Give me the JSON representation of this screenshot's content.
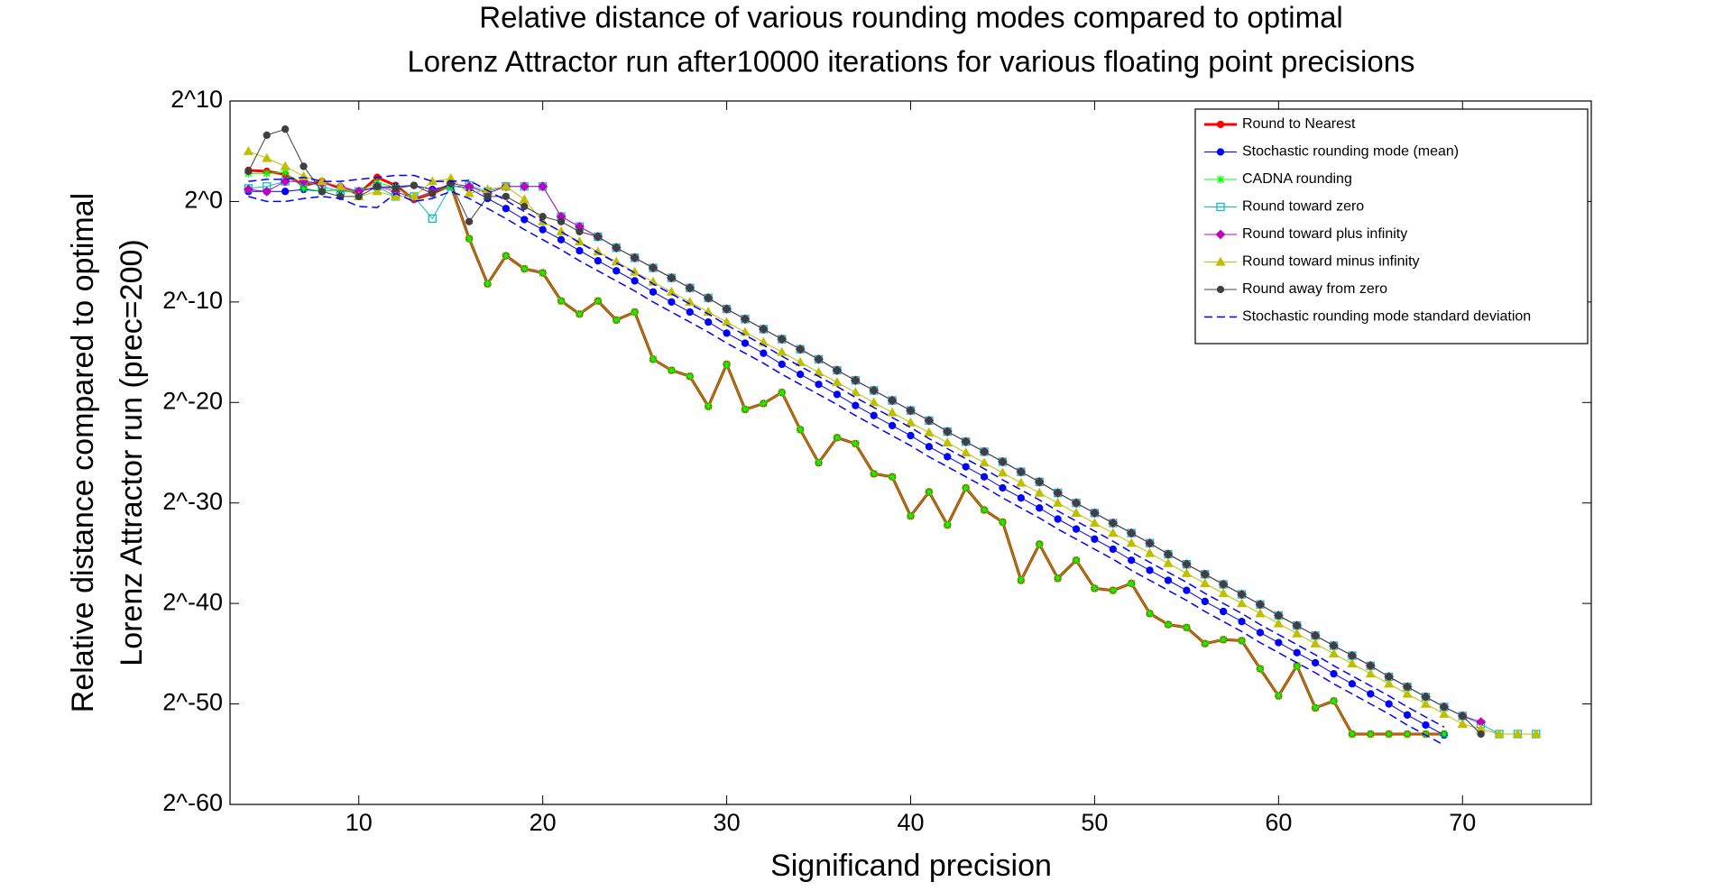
{
  "chart_data": {
    "type": "line",
    "title": [
      "Relative distance of various rounding modes compared to optimal",
      "Lorenz Attractor run after10000 iterations for various floating point precisions"
    ],
    "xlabel": "Significand precision",
    "ylabel": [
      "Relative distance compared to optimal",
      "Lorenz Attractor run (prec=200)"
    ],
    "xlim": [
      3,
      77
    ],
    "ylim": [
      -60,
      10
    ],
    "xticks": [
      10,
      20,
      30,
      40,
      50,
      60,
      70
    ],
    "yticks": [
      {
        "value": -60,
        "label": "2^-60"
      },
      {
        "value": -50,
        "label": "2^-50"
      },
      {
        "value": -40,
        "label": "2^-40"
      },
      {
        "value": -30,
        "label": "2^-30"
      },
      {
        "value": -20,
        "label": "2^-20"
      },
      {
        "value": -10,
        "label": "2^-10"
      },
      {
        "value": 0,
        "label": "2^0"
      },
      {
        "value": 10,
        "label": "2^10"
      }
    ],
    "log_base": 2,
    "grid": false,
    "legend": "upper right",
    "x": [
      4,
      5,
      6,
      7,
      8,
      9,
      10,
      11,
      12,
      13,
      14,
      15,
      16,
      17,
      18,
      19,
      20,
      21,
      22,
      23,
      24,
      25,
      26,
      27,
      28,
      29,
      30,
      31,
      32,
      33,
      34,
      35,
      36,
      37,
      38,
      39,
      40,
      41,
      42,
      43,
      44,
      45,
      46,
      47,
      48,
      49,
      50,
      51,
      52,
      53,
      54,
      55,
      56,
      57,
      58,
      59,
      60,
      61,
      62,
      63,
      64,
      65,
      66,
      67,
      68,
      69,
      70,
      71,
      72,
      73,
      74
    ],
    "series": [
      {
        "name": "Round to Nearest",
        "color": "#ff0000",
        "marker": "circle",
        "width": 3,
        "values": [
          3.1,
          3,
          2.7,
          1.6,
          2,
          1.3,
          0.8,
          2.4,
          1.6,
          0.2,
          0.8,
          1.6,
          -3.7,
          -8.2,
          -5.4,
          -6.7,
          -7.1,
          -9.9,
          -11.2,
          -9.9,
          -11.8,
          -11,
          -15.7,
          -16.8,
          -17.4,
          -20.4,
          -16.2,
          -20.7,
          -20.1,
          -19,
          -22.7,
          -26,
          -23.5,
          -24.1,
          -27.1,
          -27.4,
          -31.3,
          -28.9,
          -32.2,
          -28.5,
          -30.7,
          -31.9,
          -37.7,
          -34.1,
          -37.5,
          -35.7,
          -38.5,
          -38.7,
          -38,
          -41,
          -42.1,
          -42.4,
          -44,
          -43.6,
          -43.7,
          -46.5,
          -49.2,
          -46.2,
          -50.4,
          -49.7,
          -53,
          -53,
          -53,
          -53,
          -53,
          -53,
          null,
          null,
          null,
          null,
          null
        ]
      },
      {
        "name": "Stochastic rounding mode (mean)",
        "color": "#0000ff",
        "marker": "circle",
        "width": 1,
        "values": [
          1,
          1,
          1,
          1.2,
          1,
          1.2,
          1,
          1.4,
          1.5,
          1.6,
          1.2,
          1.6,
          1.3,
          0.3,
          -0.7,
          -1.8,
          -2.8,
          -3.8,
          -4.9,
          -5.9,
          -6.9,
          -7.9,
          -9,
          -10,
          -11,
          -12,
          -13.1,
          -14.1,
          -15.1,
          -16.2,
          -17.2,
          -18.2,
          -19.2,
          -20.3,
          -21.3,
          -22.3,
          -23.3,
          -24.4,
          -25.4,
          -26.4,
          -27.4,
          -28.5,
          -29.5,
          -30.5,
          -31.6,
          -32.6,
          -33.6,
          -34.6,
          -35.7,
          -36.7,
          -37.7,
          -38.7,
          -39.8,
          -40.8,
          -41.8,
          -42.9,
          -43.9,
          -44.9,
          -45.9,
          -47,
          -48,
          -49,
          -50,
          -51.1,
          -52.1,
          -53.1,
          null,
          null,
          null,
          null,
          null
        ]
      },
      {
        "name": "CADNA rounding",
        "color": "#00ff00",
        "marker": "star",
        "width": 1,
        "values": [
          2.8,
          2.8,
          2.9,
          1.3,
          1,
          1.2,
          1,
          1.9,
          1.4,
          0.3,
          0.9,
          1.5,
          -3.7,
          -8.2,
          -5.4,
          -6.7,
          -7.1,
          -9.9,
          -11.2,
          -9.9,
          -11.8,
          -11,
          -15.7,
          -16.8,
          -17.4,
          -20.4,
          -16.2,
          -20.7,
          -20.1,
          -19,
          -22.7,
          -26,
          -23.5,
          -24.1,
          -27.1,
          -27.4,
          -31.3,
          -28.9,
          -32.2,
          -28.5,
          -30.7,
          -31.9,
          -37.7,
          -34.1,
          -37.5,
          -35.7,
          -38.5,
          -38.7,
          -38,
          -41,
          -42.1,
          -42.4,
          -44,
          -43.6,
          -43.7,
          -46.5,
          -49.2,
          -46.2,
          -50.4,
          -49.7,
          -53,
          -53,
          -53,
          -53,
          -53,
          -53,
          null,
          null,
          null,
          null,
          null
        ]
      },
      {
        "name": "Round toward zero",
        "color": "#00bfbf",
        "marker": "square",
        "width": 1,
        "values": [
          1.3,
          1.5,
          2,
          2,
          1.5,
          1,
          1,
          1.5,
          0.5,
          0.5,
          -1.7,
          1.5,
          1.6,
          1,
          1.5,
          1.5,
          1.5,
          -1.5,
          -2.5,
          -3.5,
          -4.6,
          -5.6,
          -6.6,
          -7.6,
          -8.6,
          -9.6,
          -10.7,
          -11.7,
          -12.7,
          -13.7,
          -14.7,
          -15.7,
          -16.8,
          -17.8,
          -18.8,
          -19.8,
          -20.8,
          -21.8,
          -22.9,
          -23.9,
          -24.9,
          -25.9,
          -26.9,
          -27.9,
          -29,
          -30,
          -31,
          -32,
          -33,
          -34,
          -35.1,
          -36.1,
          -37.1,
          -38.1,
          -39.1,
          -40.1,
          -41.2,
          -42.2,
          -43.2,
          -44.2,
          -45.2,
          -46.2,
          -47.3,
          -48.3,
          -49.3,
          -50.3,
          -51.2,
          -52,
          -53,
          -53,
          -53
        ]
      },
      {
        "name": "Round toward plus infinity",
        "color": "#bf00bf",
        "marker": "diamond",
        "width": 1,
        "values": [
          1.2,
          1,
          2,
          2,
          1.8,
          1.5,
          1,
          1.5,
          1,
          0.3,
          1,
          1.8,
          1.5,
          0.8,
          1.5,
          1.5,
          1.5,
          -1.5,
          -2.5,
          -3.5,
          -4.6,
          -5.6,
          -6.6,
          -7.6,
          -8.6,
          -9.6,
          -10.7,
          -11.7,
          -12.7,
          -13.7,
          -14.7,
          -15.7,
          -16.8,
          -17.8,
          -18.8,
          -19.8,
          -20.8,
          -21.8,
          -22.9,
          -23.9,
          -24.9,
          -25.9,
          -26.9,
          -27.9,
          -29,
          -30,
          -31,
          -32,
          -33,
          -34,
          -35.1,
          -36.1,
          -37.1,
          -38.1,
          -39.1,
          -40.1,
          -41.2,
          -42.2,
          -43.2,
          -44.2,
          -45.2,
          -46.2,
          -47.3,
          -48.3,
          -49.3,
          -50.3,
          -51.2,
          -51.8,
          null,
          null,
          null
        ]
      },
      {
        "name": "Round toward minus infinity",
        "color": "#bfbf00",
        "marker": "triangle",
        "width": 1,
        "values": [
          5,
          4.3,
          3.5,
          2.5,
          2,
          1.5,
          0.5,
          1,
          0.5,
          0.5,
          2,
          2.3,
          0.8,
          1.2,
          1.5,
          0.2,
          -2,
          -3,
          -4,
          -5,
          -6,
          -7,
          -8,
          -9,
          -10,
          -11,
          -12,
          -13,
          -14,
          -15,
          -16,
          -17,
          -18,
          -19,
          -20,
          -21,
          -22,
          -23,
          -24,
          -25,
          -26,
          -27,
          -28,
          -29,
          -30,
          -31,
          -32,
          -33,
          -34,
          -35,
          -36,
          -37,
          -38,
          -39,
          -40,
          -41,
          -42,
          -43,
          -44,
          -45,
          -46,
          -47,
          -48,
          -49,
          -50,
          -51,
          -52,
          -52.5,
          -53,
          -53,
          -53
        ]
      },
      {
        "name": "Round away from zero",
        "color": "#404040",
        "marker": "circle",
        "width": 1,
        "values": [
          3,
          6.6,
          7.2,
          3.5,
          1,
          0.5,
          0.5,
          1.5,
          1.3,
          1.6,
          0.8,
          1.8,
          -2,
          0.5,
          0.5,
          -0.5,
          -1.5,
          -2,
          -3,
          -3.5,
          -4.6,
          -5.6,
          -6.6,
          -7.6,
          -8.6,
          -9.6,
          -10.7,
          -11.7,
          -12.7,
          -13.7,
          -14.7,
          -15.7,
          -16.8,
          -17.8,
          -18.8,
          -19.8,
          -20.8,
          -21.8,
          -22.9,
          -23.9,
          -24.9,
          -25.9,
          -26.9,
          -27.9,
          -29,
          -30,
          -31,
          -32,
          -33,
          -34,
          -35.1,
          -36.1,
          -37.1,
          -38.1,
          -39.1,
          -40.1,
          -41.2,
          -42.2,
          -43.2,
          -44.2,
          -45.2,
          -46.2,
          -47.3,
          -48.3,
          -49.3,
          -50.3,
          -51.2,
          -53,
          null,
          null,
          null
        ]
      },
      {
        "name": "Stochastic rounding mode standard deviation",
        "color": "#0000ff",
        "marker": "none",
        "width": 1.5,
        "dashed": true,
        "values": [
          2,
          2.2,
          2.2,
          2.4,
          2,
          2,
          2.2,
          2.4,
          2.6,
          2.6,
          2,
          2,
          2.1,
          1.1,
          0.1,
          -1,
          -2,
          -3,
          -4.1,
          -5.1,
          -6.1,
          -7.1,
          -8.2,
          -9.2,
          -10.2,
          -11.2,
          -12.3,
          -13.3,
          -14.3,
          -15.4,
          -16.4,
          -17.4,
          -18.4,
          -19.5,
          -20.5,
          -21.5,
          -22.5,
          -23.6,
          -24.6,
          -25.6,
          -26.6,
          -27.7,
          -28.7,
          -29.7,
          -30.8,
          -31.8,
          -32.8,
          -33.8,
          -34.9,
          -35.9,
          -36.9,
          -37.9,
          -39,
          -40,
          -41,
          -42.1,
          -43.1,
          -44.1,
          -45.1,
          -46.2,
          -47.2,
          -48.2,
          -49.2,
          -50.3,
          -51.3,
          -52.3,
          null,
          null,
          null,
          null,
          null
        ],
        "values_lower": [
          0.5,
          0,
          0,
          0.3,
          0.5,
          0.3,
          -0.5,
          -0.6,
          0.8,
          0,
          0.3,
          1,
          0.3,
          -0.7,
          -1.7,
          -2.8,
          -3.8,
          -4.8,
          -5.9,
          -6.9,
          -7.9,
          -8.9,
          -10,
          -11,
          -12,
          -13,
          -14.1,
          -15.1,
          -16.1,
          -17.2,
          -18.2,
          -19.2,
          -20.2,
          -21.3,
          -22.3,
          -23.3,
          -24.3,
          -25.4,
          -26.4,
          -27.4,
          -28.4,
          -29.5,
          -30.5,
          -31.5,
          -32.6,
          -33.6,
          -34.6,
          -35.6,
          -36.7,
          -37.7,
          -38.7,
          -39.7,
          -40.8,
          -41.8,
          -42.8,
          -43.9,
          -44.9,
          -45.9,
          -46.9,
          -48,
          -49,
          -50,
          -51,
          -52.1,
          -53.1,
          -54.1,
          null,
          null,
          null,
          null,
          null
        ]
      }
    ]
  }
}
